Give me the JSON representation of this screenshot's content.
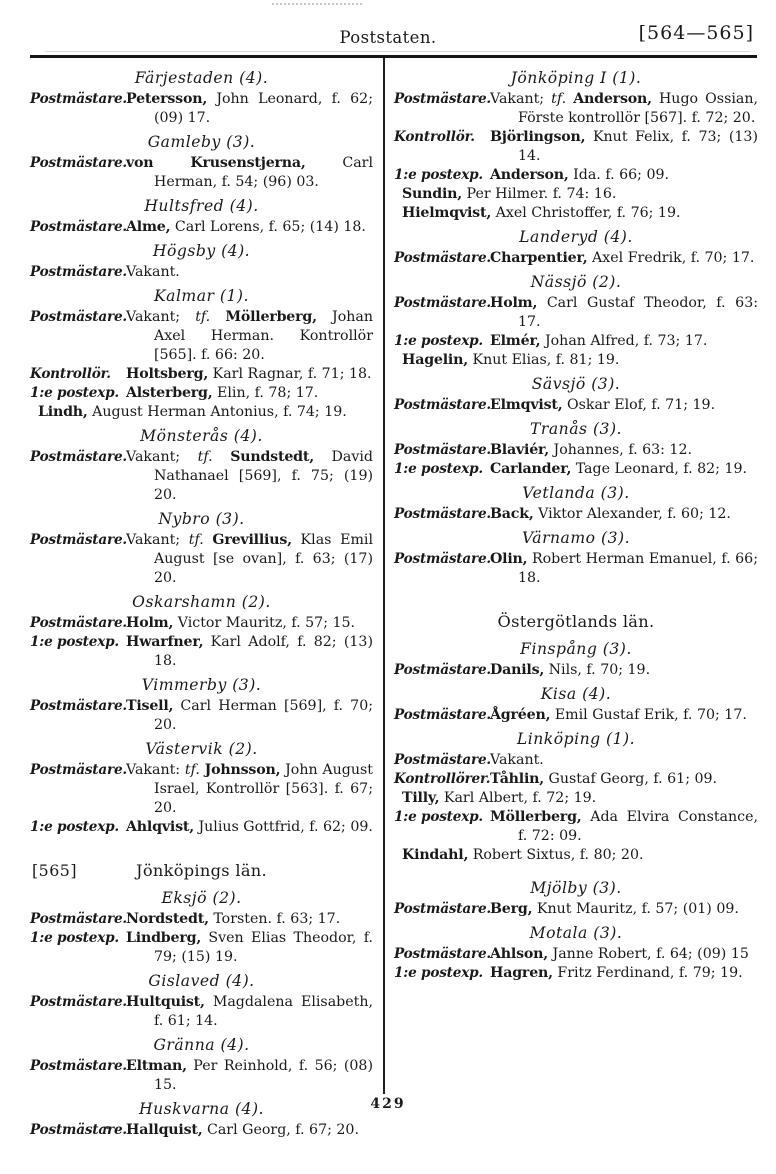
{
  "header": {
    "title": "Poststaten.",
    "page_range": "[564—565]"
  },
  "footer": {
    "page_number": "429"
  },
  "columns": {
    "left": [
      {
        "type": "place",
        "name": "Färjestaden",
        "count": "(4).",
        "rows": [
          {
            "label": "Postmästare.",
            "pre": "",
            "tf": "",
            "name": "Petersson,",
            "rest": " John Leonard, f. 62; (09) 17."
          }
        ]
      },
      {
        "type": "place",
        "name": "Gamleby",
        "count": "(3).",
        "rows": [
          {
            "label": "Postmästare.",
            "pre": "",
            "tf": "",
            "name": "von Krusenstjerna,",
            "rest": " Carl Herman, f. 54; (96) 03."
          }
        ]
      },
      {
        "type": "place",
        "name": "Hultsfred",
        "count": "(4).",
        "rows": [
          {
            "label": "Postmästare.",
            "pre": "",
            "tf": "",
            "name": "Alme,",
            "rest": " Carl Lorens, f. 65; (14) 18."
          }
        ]
      },
      {
        "type": "place",
        "name": "Högsby",
        "count": "(4).",
        "rows": [
          {
            "label": "Postmästare.",
            "pre": "Vakant.",
            "tf": "",
            "name": "",
            "rest": ""
          }
        ]
      },
      {
        "type": "place",
        "name": "Kalmar",
        "count": "(1).",
        "rows": [
          {
            "label": "Postmästare.",
            "pre": "Vakant; ",
            "tf": "tf. ",
            "name": "Möllerberg,",
            "rest": " Johan Axel Herman. Kontrollör [565]. f. 66: 20."
          },
          {
            "label": "Kontrollör.",
            "pre": "",
            "tf": "",
            "name": "Holtsberg,",
            "rest": " Karl Ragnar, f. 71; 18."
          },
          {
            "label": "1:e postexp.",
            "pre": "",
            "tf": "",
            "name": "Alsterberg,",
            "rest": " Elin, f. 78; 17."
          },
          {
            "hang": true,
            "pre": "",
            "tf": "",
            "name": "Lindh,",
            "rest": " August Herman Antonius, f. 74; 19."
          }
        ]
      },
      {
        "type": "place",
        "name": "Mönsterås",
        "count": "(4).",
        "rows": [
          {
            "label": "Postmästare.",
            "pre": "Vakant; ",
            "tf": "tf. ",
            "name": "Sundstedt,",
            "rest": " David Nathanael [569], f. 75; (19) 20."
          }
        ]
      },
      {
        "type": "place",
        "name": "Nybro",
        "count": "(3).",
        "rows": [
          {
            "label": "Postmästare.",
            "pre": "Vakant; ",
            "tf": "tf. ",
            "name": "Grevillius,",
            "rest": " Klas Emil August [se ovan], f. 63; (17) 20."
          }
        ]
      },
      {
        "type": "place",
        "name": "Oskarshamn",
        "count": "(2).",
        "rows": [
          {
            "label": "Postmästare.",
            "pre": "",
            "tf": "",
            "name": "Holm,",
            "rest": " Victor Mauritz, f. 57; 15."
          },
          {
            "label": "1:e postexp.",
            "pre": "",
            "tf": "",
            "name": "Hwarfner,",
            "rest": " Karl Adolf, f. 82; (13) 18."
          }
        ]
      },
      {
        "type": "place",
        "name": "Vimmerby",
        "count": "(3).",
        "rows": [
          {
            "label": "Postmästare.",
            "pre": "",
            "tf": "",
            "name": "Tisell,",
            "rest": " Carl Herman [569], f. 70; 20."
          }
        ]
      },
      {
        "type": "place",
        "name": "Västervik",
        "count": "(2).",
        "rows": [
          {
            "label": "Postmästare.",
            "pre": "Vakant: ",
            "tf": "tf. ",
            "name": "Johnsson,",
            "rest": " John August Israel, Kontrollör [563]. f. 67; 20."
          },
          {
            "label": "1:e postexp.",
            "pre": "",
            "tf": "",
            "name": "Ahlqvist,",
            "rest": " Julius Gottfrid, f. 62; 09."
          }
        ]
      },
      {
        "type": "section",
        "bracket": "[565]",
        "title": "Jönköpings län."
      },
      {
        "type": "place",
        "name": "Eksjö",
        "count": "(2).",
        "rows": [
          {
            "label": "Postmästare.",
            "pre": "",
            "tf": "",
            "name": "Nordstedt,",
            "rest": " Torsten. f. 63; 17."
          },
          {
            "label": "1:e postexp.",
            "pre": "",
            "tf": "",
            "name": "Lindberg,",
            "rest": " Sven Elias Theodor, f. 79; (15) 19."
          }
        ]
      },
      {
        "type": "place",
        "name": "Gislaved",
        "count": "(4).",
        "rows": [
          {
            "label": "Postmästare.",
            "pre": "",
            "tf": "",
            "name": "Hultquist,",
            "rest": " Magdalena Elisabeth, f. 61; 14."
          }
        ]
      },
      {
        "type": "place",
        "name": "Gränna",
        "count": "(4).",
        "rows": [
          {
            "label": "Postmästare.",
            "pre": "",
            "tf": "",
            "name": "Eltman,",
            "rest": " Per Reinhold, f. 56; (08) 15."
          }
        ]
      },
      {
        "type": "place",
        "name": "Huskvarna",
        "count": "(4).",
        "rows": [
          {
            "label": "Postmästare.",
            "pre": "",
            "tf": "",
            "name": "Hallquist,",
            "rest": " Carl Georg, f. 67; 20."
          }
        ]
      }
    ],
    "right": [
      {
        "type": "place",
        "name": "Jönköping I",
        "count": "(1).",
        "rows": [
          {
            "label": "Postmästare.",
            "pre": "Vakant; ",
            "tf": "tf. ",
            "name": "Anderson,",
            "rest": " Hugo Ossian, Förste kontrollör [567]. f. 72; 20."
          },
          {
            "label": "Kontrollör.",
            "pre": "",
            "tf": "",
            "name": "Björlingson,",
            "rest": " Knut Felix, f. 73; (13) 14."
          },
          {
            "label": "1:e postexp.",
            "pre": "",
            "tf": "",
            "name": "Anderson,",
            "rest": " Ida. f. 66; 09."
          },
          {
            "hang": true,
            "pre": "",
            "tf": "",
            "name": "Sundin,",
            "rest": " Per Hilmer. f. 74: 16."
          },
          {
            "hang": true,
            "pre": "",
            "tf": "",
            "name": "Hielmqvist,",
            "rest": " Axel Christoffer, f. 76; 19."
          }
        ]
      },
      {
        "type": "place",
        "name": "Landeryd",
        "count": "(4).",
        "rows": [
          {
            "label": "Postmästare.",
            "pre": "",
            "tf": "",
            "name": "Charpentier,",
            "rest": " Axel Fredrik, f. 70; 17."
          }
        ]
      },
      {
        "type": "place",
        "name": "Nässjö",
        "count": "(2).",
        "rows": [
          {
            "label": "Postmästare.",
            "pre": "",
            "tf": "",
            "name": "Holm,",
            "rest": " Carl Gustaf Theodor, f. 63: 17."
          },
          {
            "label": "1:e postexp.",
            "pre": "",
            "tf": "",
            "name": "Elmér,",
            "rest": " Johan Alfred, f. 73; 17."
          },
          {
            "hang": true,
            "pre": "",
            "tf": "",
            "name": "Hagelin,",
            "rest": " Knut Elias, f. 81; 19."
          }
        ]
      },
      {
        "type": "place",
        "name": "Sävsjö",
        "count": "(3).",
        "rows": [
          {
            "label": "Postmästare.",
            "pre": "",
            "tf": "",
            "name": "Elmqvist,",
            "rest": " Oskar Elof, f. 71; 19."
          }
        ]
      },
      {
        "type": "place",
        "name": "Tranås",
        "count": "(3).",
        "rows": [
          {
            "label": "Postmästare.",
            "pre": "",
            "tf": "",
            "name": "Blaviér,",
            "rest": " Johannes, f. 63: 12."
          },
          {
            "label": "1:e postexp.",
            "pre": "",
            "tf": "",
            "name": "Carlander,",
            "rest": " Tage Leonard, f. 82; 19."
          }
        ]
      },
      {
        "type": "place",
        "name": "Vetlanda",
        "count": "(3).",
        "rows": [
          {
            "label": "Postmästare.",
            "pre": "",
            "tf": "",
            "name": "Back,",
            "rest": " Viktor Alexander, f. 60; 12."
          }
        ]
      },
      {
        "type": "place",
        "name": "Värnamo",
        "count": "(3).",
        "rows": [
          {
            "label": "Postmästare.",
            "pre": "",
            "tf": "",
            "name": "Olin,",
            "rest": " Robert Herman Emanuel, f. 66; 18."
          }
        ]
      },
      {
        "type": "section",
        "bracket": "",
        "title": "Östergötlands län."
      },
      {
        "type": "place",
        "name": "Finspång",
        "count": "(3).",
        "rows": [
          {
            "label": "Postmästare.",
            "pre": "",
            "tf": "",
            "name": "Danils,",
            "rest": " Nils, f. 70; 19."
          }
        ]
      },
      {
        "type": "place",
        "name": "Kisa",
        "count": "(4).",
        "rows": [
          {
            "label": "Postmästare.",
            "pre": "",
            "tf": "",
            "name": "Ågréen,",
            "rest": " Emil Gustaf Erik, f. 70; 17."
          }
        ]
      },
      {
        "type": "place",
        "name": "Linköping",
        "count": "(1).",
        "rows": [
          {
            "label": "Postmästare.",
            "pre": "Vakant.",
            "tf": "",
            "name": "",
            "rest": ""
          },
          {
            "label": "Kontrollörer.",
            "pre": "",
            "tf": "",
            "name": "Tåhlin,",
            "rest": " Gustaf Georg, f. 61; 09."
          },
          {
            "hang": true,
            "pre": "",
            "tf": "",
            "name": "Tilly,",
            "rest": " Karl Albert, f. 72; 19."
          },
          {
            "label": "1:e postexp.",
            "pre": "",
            "tf": "",
            "name": "Möllerberg,",
            "rest": " Ada Elvira Constance, f. 72: 09."
          },
          {
            "hang": true,
            "pre": "",
            "tf": "",
            "name": "Kindahl,",
            "rest": " Robert Sixtus, f. 80; 20."
          }
        ]
      },
      {
        "type": "place",
        "name": "Mjölby",
        "count": "(3).",
        "gap": true,
        "rows": [
          {
            "label": "Postmästare.",
            "pre": "",
            "tf": "",
            "name": "Berg,",
            "rest": " Knut Mauritz, f. 57; (01) 09."
          }
        ]
      },
      {
        "type": "place",
        "name": "Motala",
        "count": "(3).",
        "rows": [
          {
            "label": "Postmästare.",
            "pre": "",
            "tf": "",
            "name": "Ahlson,",
            "rest": " Janne Robert, f. 64; (09) 15"
          },
          {
            "label": "1:e postexp.",
            "pre": "",
            "tf": "",
            "name": "Hagren,",
            "rest": " Fritz Ferdinand, f. 79; 19."
          }
        ]
      }
    ]
  }
}
